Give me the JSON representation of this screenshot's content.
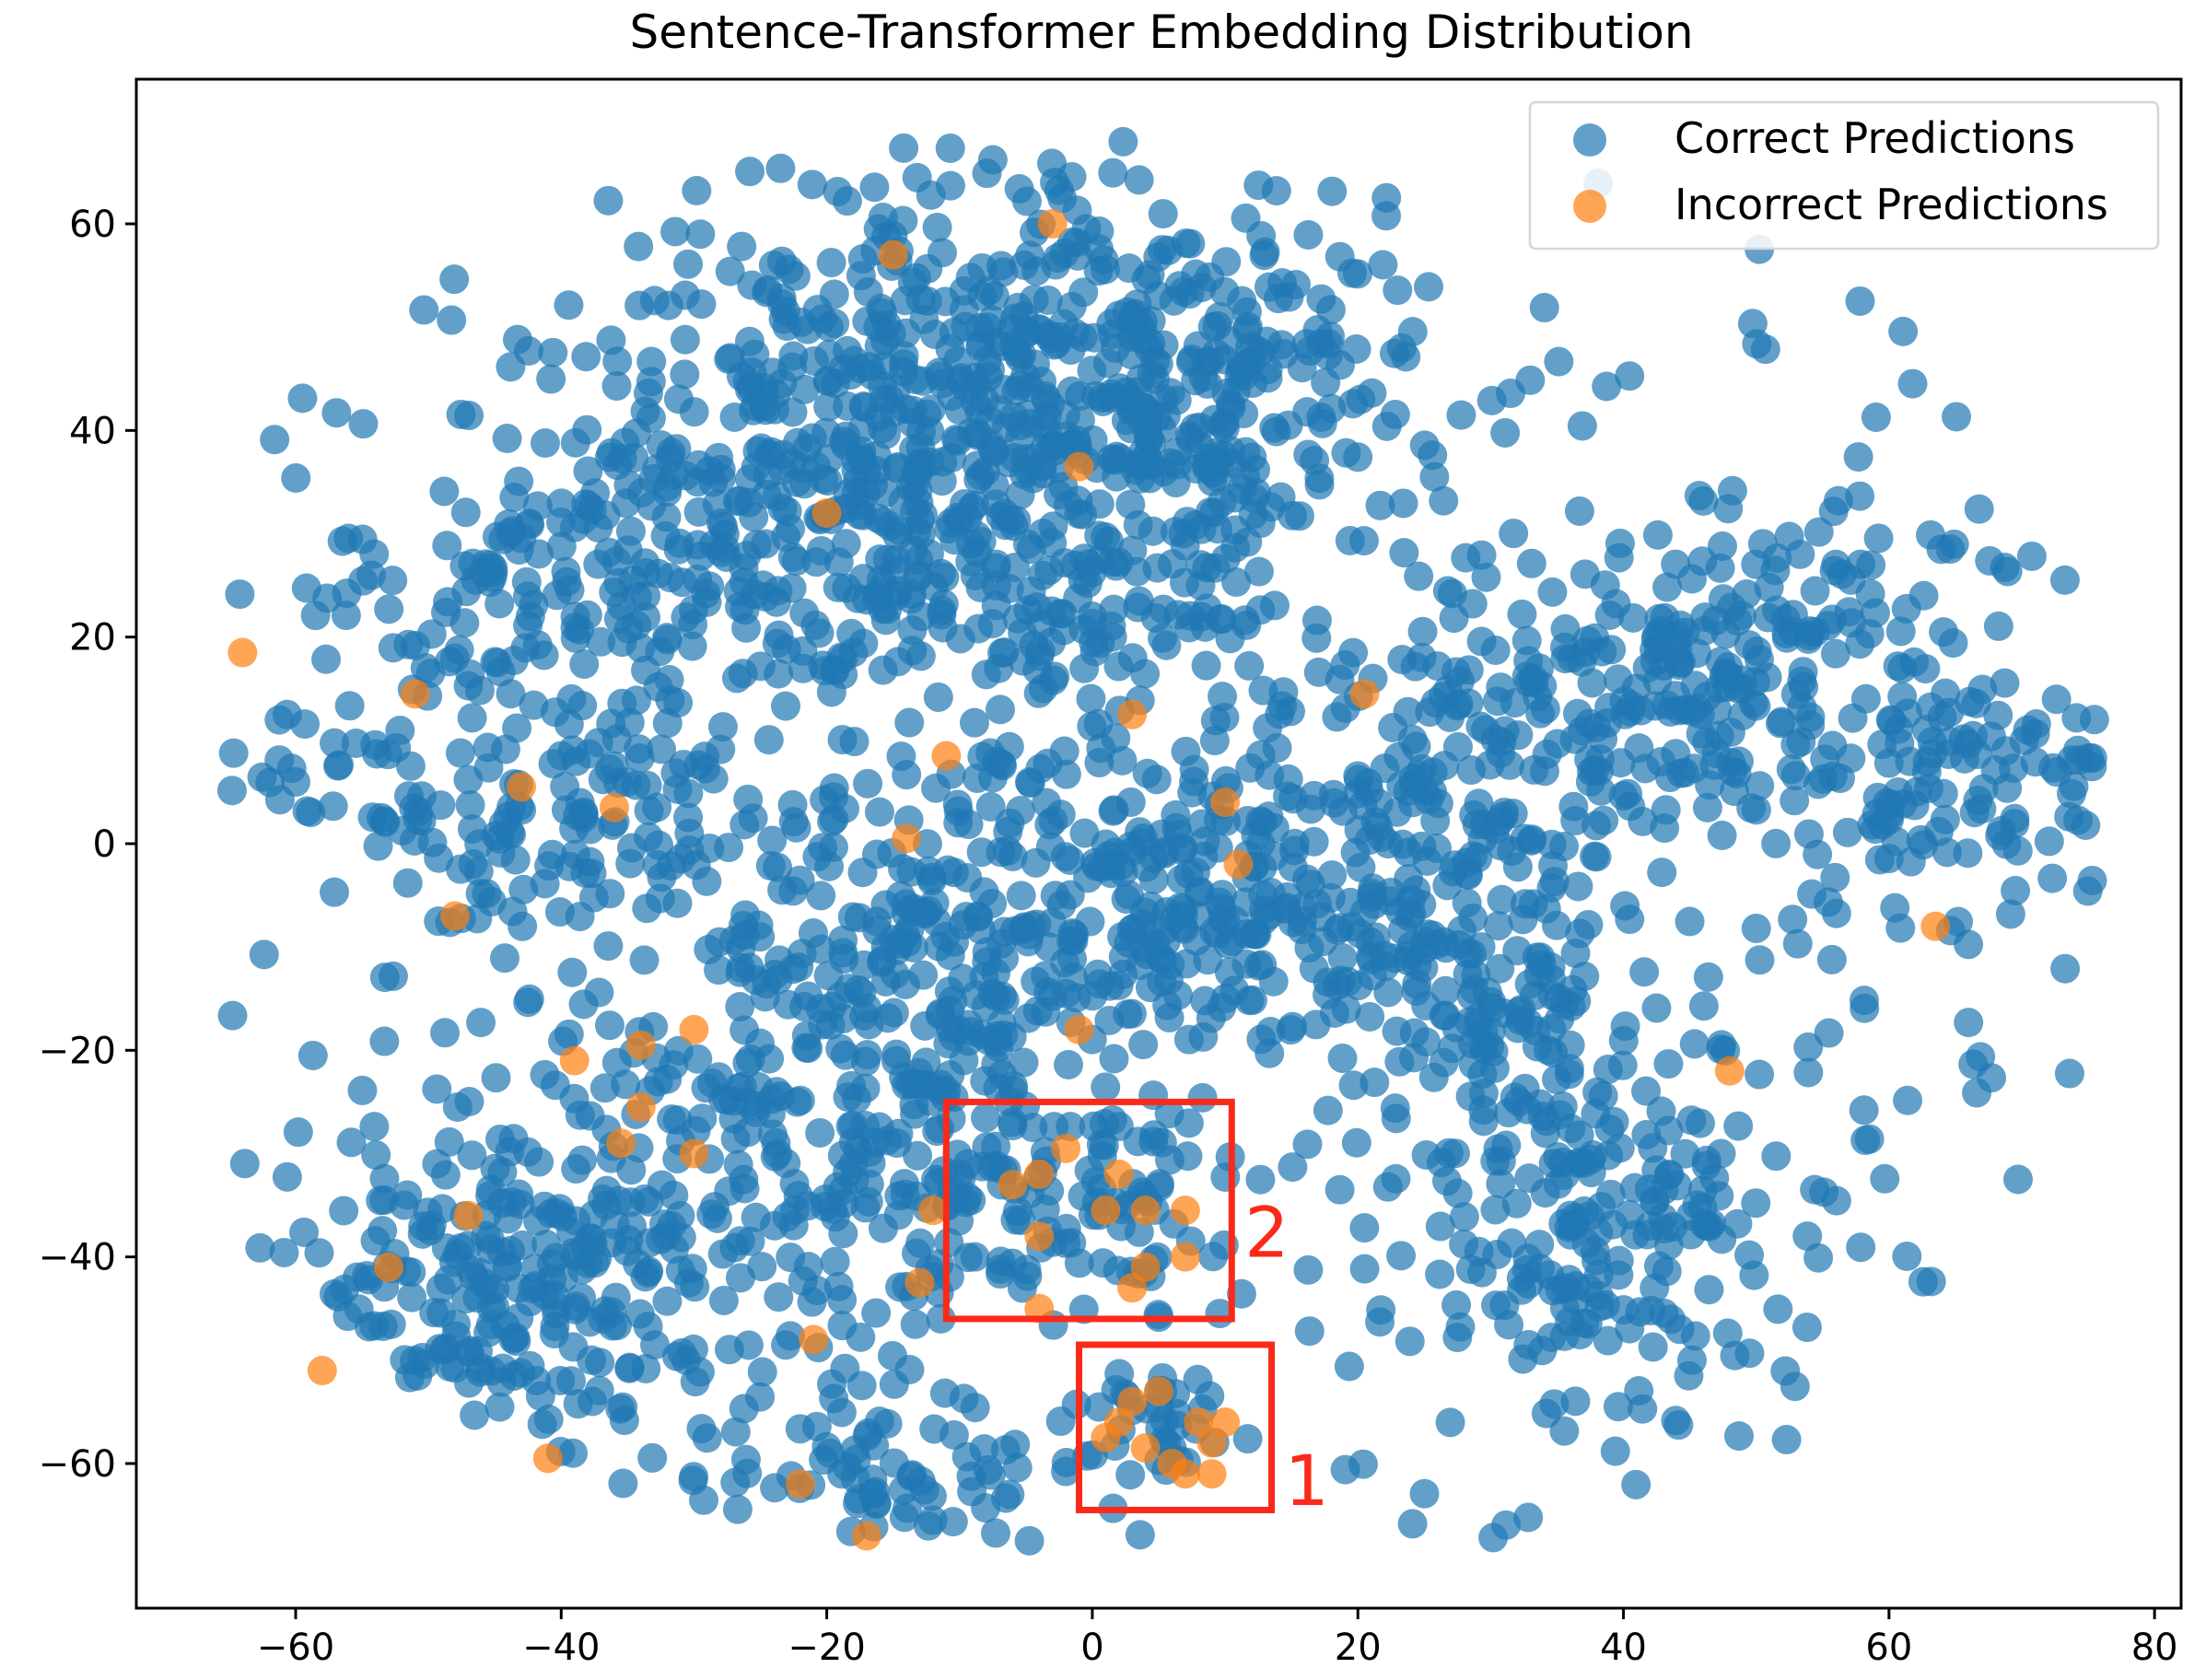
{
  "chart_data": {
    "type": "scatter",
    "title": "Sentence-Transformer Embedding Distribution",
    "xlabel": "",
    "ylabel": "",
    "xlim": [
      -72,
      82
    ],
    "ylim": [
      -74,
      74
    ],
    "xticks": [
      -60,
      -40,
      -20,
      0,
      20,
      40,
      60,
      80
    ],
    "yticks": [
      -60,
      -40,
      -20,
      0,
      20,
      40,
      60
    ],
    "grid": false,
    "legend_position": "top-right",
    "series": [
      {
        "name": "Correct Predictions",
        "color": "#1f77b4",
        "opacity": 0.7,
        "count_approx": 2300
      },
      {
        "name": "Incorrect Predictions",
        "color": "#ff7f0e",
        "opacity": 0.7,
        "points": [
          [
            -64,
            18.5
          ],
          [
            -51,
            14.5
          ],
          [
            -48,
            -7
          ],
          [
            -43,
            5.5
          ],
          [
            -36,
            3.5
          ],
          [
            -39,
            -21
          ],
          [
            -34,
            -19.5
          ],
          [
            -34,
            -25.5
          ],
          [
            -35.5,
            -29
          ],
          [
            -30,
            -18
          ],
          [
            -30,
            -30
          ],
          [
            -47,
            -36
          ],
          [
            -53,
            -41
          ],
          [
            -58,
            -51
          ],
          [
            -41,
            -59.5
          ],
          [
            -20,
            32
          ],
          [
            -15,
            57
          ],
          [
            -14,
            0.5
          ],
          [
            -11,
            8.5
          ],
          [
            -21,
            -48
          ],
          [
            -22,
            -62
          ],
          [
            -17,
            -67
          ],
          [
            -13,
            -42.5
          ],
          [
            -12,
            -35.5
          ],
          [
            -3,
            60
          ],
          [
            -1,
            36.5
          ],
          [
            3,
            12.5
          ],
          [
            10,
            4
          ],
          [
            11,
            -2
          ],
          [
            20.5,
            14.5
          ],
          [
            -1,
            -18
          ],
          [
            63.5,
            -8
          ],
          [
            48,
            -22
          ],
          [
            -2,
            -29.5
          ],
          [
            -4,
            -32
          ],
          [
            -6,
            -33
          ],
          [
            2,
            -32
          ],
          [
            4,
            -35.5
          ],
          [
            7,
            -35.5
          ],
          [
            1,
            -35.5
          ],
          [
            -4,
            -38
          ],
          [
            4,
            -41
          ],
          [
            7,
            -40
          ],
          [
            3,
            -43
          ],
          [
            -4,
            -45
          ],
          [
            3,
            -54
          ],
          [
            5,
            -53
          ],
          [
            8,
            -56
          ],
          [
            10,
            -56
          ],
          [
            1,
            -57.5
          ],
          [
            4,
            -58.5
          ],
          [
            6,
            -60
          ],
          [
            9,
            -58
          ],
          [
            7,
            -61
          ],
          [
            9,
            -61
          ],
          [
            2,
            -56
          ]
        ]
      }
    ],
    "annotations": [
      {
        "label": "2",
        "x_range": [
          -11,
          10.5
        ],
        "y_range": [
          -46,
          -25
        ],
        "color": "#fa2a1a"
      },
      {
        "label": "1",
        "x_range": [
          -1,
          13.5
        ],
        "y_range": [
          -64.5,
          -48.5
        ],
        "color": "#fa2a1a"
      }
    ]
  },
  "legend": {
    "items": [
      {
        "label": "Correct Predictions",
        "color": "#1f77b4"
      },
      {
        "label": "Incorrect Predictions",
        "color": "#ff7f0e"
      }
    ]
  }
}
